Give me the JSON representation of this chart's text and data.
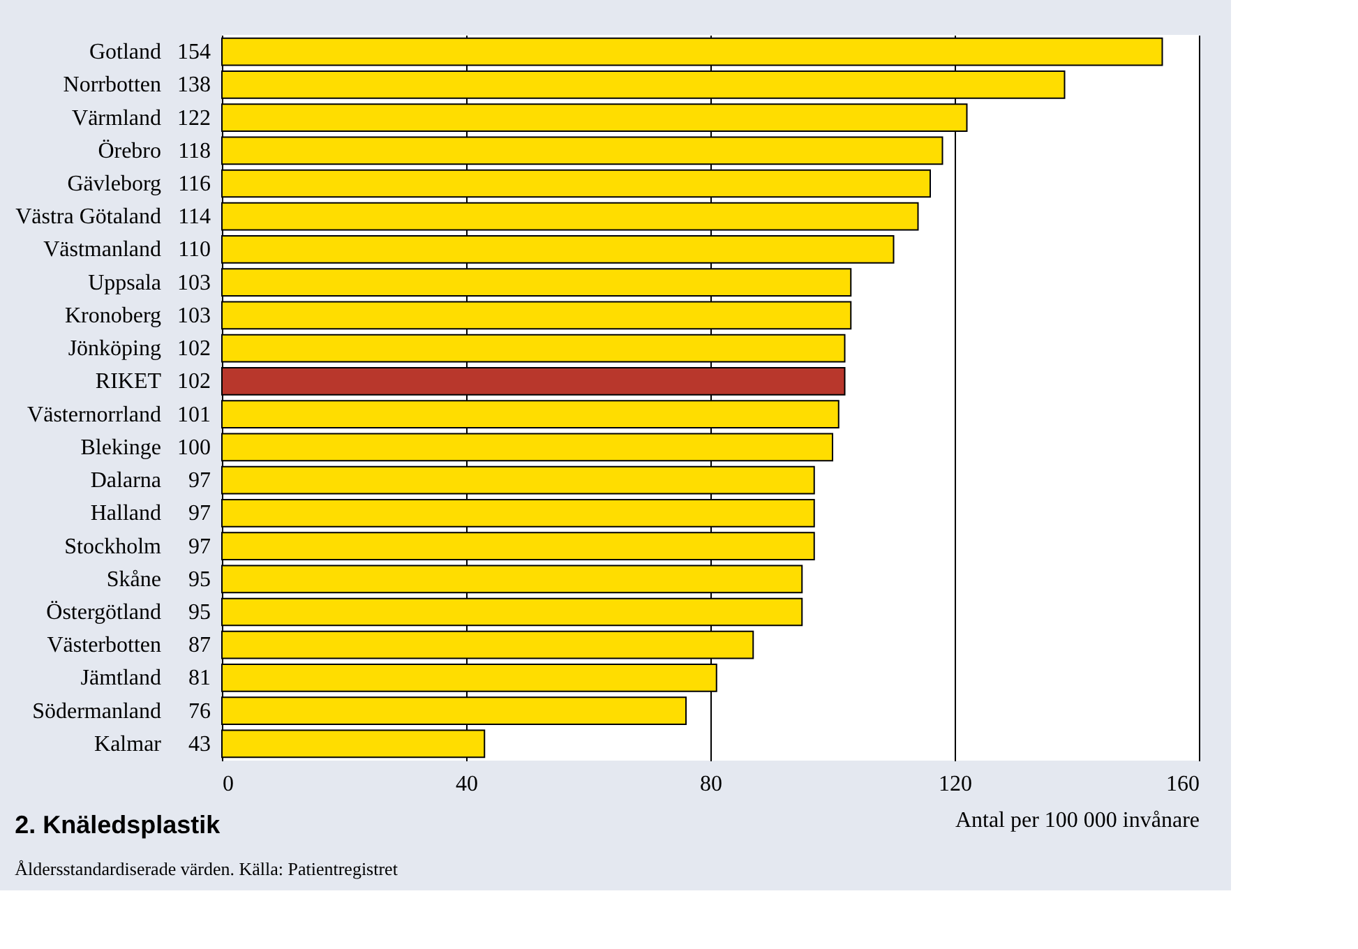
{
  "chart_data": {
    "type": "bar",
    "orientation": "horizontal",
    "title": "2.  Knäledsplastik",
    "xlabel": "Antal per 100 000 invånare",
    "annotations": [
      "Åldersstandardiserade värden. Källa: Patientregistret"
    ],
    "categories": [
      "Gotland",
      "Norrbotten",
      "Värmland",
      "Örebro",
      "Gävleborg",
      "Västra Götaland",
      "Västmanland",
      "Uppsala",
      "Kronoberg",
      "Jönköping",
      "RIKET",
      "Västernorrland",
      "Blekinge",
      "Dalarna",
      "Halland",
      "Stockholm",
      "Skåne",
      "Östergötland",
      "Västerbotten",
      "Jämtland",
      "Södermanland",
      "Kalmar"
    ],
    "values": [
      154,
      138,
      122,
      118,
      116,
      114,
      110,
      103,
      103,
      102,
      102,
      101,
      100,
      97,
      97,
      97,
      95,
      95,
      87,
      81,
      76,
      43
    ],
    "colors": [
      "#ffdd00",
      "#ffdd00",
      "#ffdd00",
      "#ffdd00",
      "#ffdd00",
      "#ffdd00",
      "#ffdd00",
      "#ffdd00",
      "#ffdd00",
      "#ffdd00",
      "#b8372c",
      "#ffdd00",
      "#ffdd00",
      "#ffdd00",
      "#ffdd00",
      "#ffdd00",
      "#ffdd00",
      "#ffdd00",
      "#ffdd00",
      "#ffdd00",
      "#ffdd00",
      "#ffdd00"
    ],
    "xlim": [
      0,
      160
    ],
    "xticks": [
      0,
      40,
      80,
      120,
      160
    ],
    "grid": "x",
    "data_labels": true
  }
}
